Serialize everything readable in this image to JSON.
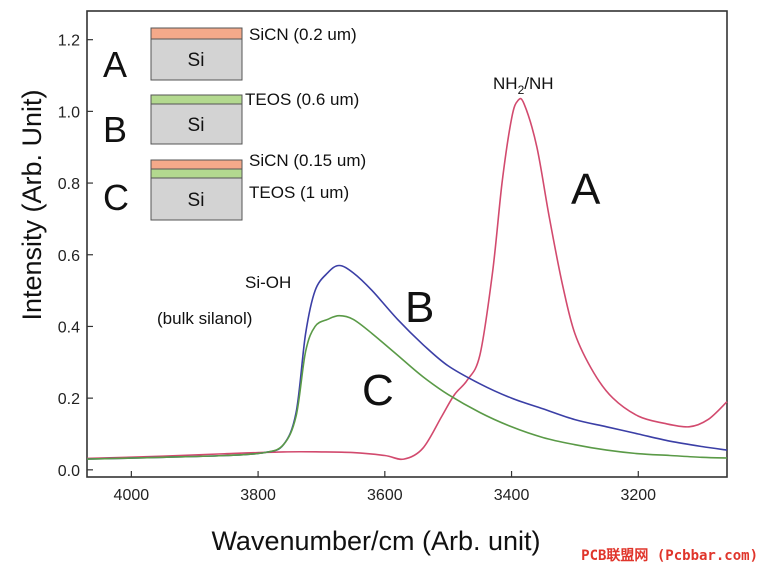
{
  "chart_data": {
    "type": "line",
    "xlabel": "Wavenumber/cm (Arb. unit)",
    "ylabel": "Intensity (Arb. Unit)",
    "xlim": [
      4070,
      3060
    ],
    "ylim": [
      -0.02,
      1.28
    ],
    "x_reversed": true,
    "x_ticks": [
      4000,
      3800,
      3600,
      3400,
      3200
    ],
    "y_ticks": [
      0.0,
      0.2,
      0.4,
      0.6,
      0.8,
      1.0,
      1.2
    ],
    "y_tick_labels": [
      "0.0",
      "0.2",
      "0.4",
      "0.6",
      "0.8",
      "1.0",
      "1.2"
    ],
    "grid": false,
    "series": [
      {
        "name": "A",
        "color": "#d24a6e",
        "points": [
          [
            4070,
            0.032
          ],
          [
            3950,
            0.038
          ],
          [
            3850,
            0.045
          ],
          [
            3760,
            0.05
          ],
          [
            3700,
            0.05
          ],
          [
            3650,
            0.048
          ],
          [
            3600,
            0.04
          ],
          [
            3570,
            0.03
          ],
          [
            3540,
            0.06
          ],
          [
            3510,
            0.15
          ],
          [
            3490,
            0.21
          ],
          [
            3470,
            0.25
          ],
          [
            3450,
            0.32
          ],
          [
            3430,
            0.55
          ],
          [
            3415,
            0.8
          ],
          [
            3400,
            0.98
          ],
          [
            3390,
            1.03
          ],
          [
            3380,
            1.02
          ],
          [
            3360,
            0.9
          ],
          [
            3340,
            0.7
          ],
          [
            3320,
            0.52
          ],
          [
            3300,
            0.38
          ],
          [
            3270,
            0.27
          ],
          [
            3240,
            0.2
          ],
          [
            3200,
            0.15
          ],
          [
            3160,
            0.13
          ],
          [
            3120,
            0.12
          ],
          [
            3090,
            0.14
          ],
          [
            3060,
            0.19
          ]
        ]
      },
      {
        "name": "B",
        "color": "#3b3fa6",
        "points": [
          [
            4070,
            0.03
          ],
          [
            3950,
            0.035
          ],
          [
            3850,
            0.04
          ],
          [
            3790,
            0.048
          ],
          [
            3760,
            0.07
          ],
          [
            3740,
            0.16
          ],
          [
            3725,
            0.38
          ],
          [
            3710,
            0.5
          ],
          [
            3690,
            0.55
          ],
          [
            3672,
            0.57
          ],
          [
            3650,
            0.55
          ],
          [
            3620,
            0.5
          ],
          [
            3580,
            0.42
          ],
          [
            3540,
            0.35
          ],
          [
            3500,
            0.29
          ],
          [
            3450,
            0.24
          ],
          [
            3400,
            0.2
          ],
          [
            3350,
            0.17
          ],
          [
            3300,
            0.14
          ],
          [
            3250,
            0.12
          ],
          [
            3200,
            0.1
          ],
          [
            3150,
            0.08
          ],
          [
            3100,
            0.065
          ],
          [
            3060,
            0.055
          ]
        ]
      },
      {
        "name": "C",
        "color": "#5a9a47",
        "points": [
          [
            4070,
            0.03
          ],
          [
            3950,
            0.035
          ],
          [
            3850,
            0.04
          ],
          [
            3790,
            0.048
          ],
          [
            3760,
            0.07
          ],
          [
            3740,
            0.15
          ],
          [
            3725,
            0.33
          ],
          [
            3710,
            0.4
          ],
          [
            3690,
            0.42
          ],
          [
            3672,
            0.43
          ],
          [
            3650,
            0.42
          ],
          [
            3620,
            0.38
          ],
          [
            3580,
            0.32
          ],
          [
            3540,
            0.26
          ],
          [
            3500,
            0.21
          ],
          [
            3450,
            0.16
          ],
          [
            3400,
            0.12
          ],
          [
            3350,
            0.09
          ],
          [
            3300,
            0.07
          ],
          [
            3250,
            0.055
          ],
          [
            3200,
            0.045
          ],
          [
            3150,
            0.04
          ],
          [
            3100,
            0.035
          ],
          [
            3060,
            0.033
          ]
        ]
      }
    ],
    "annotations": {
      "nh_peak": {
        "pre": "NH",
        "sub": "2",
        "post": "/NH"
      },
      "sioh_line1": "Si-OH",
      "sioh_line2": "(bulk silanol)",
      "curve_label_a": "A",
      "curve_label_b": "B",
      "curve_label_c": "C"
    },
    "inset_legend": [
      {
        "letter": "A",
        "layers": [
          {
            "label": "SiCN (0.2 um)",
            "color": "#f4a98a"
          }
        ],
        "substrate": "Si"
      },
      {
        "letter": "B",
        "layers": [
          {
            "label": "TEOS (0.6 um)",
            "color": "#b3d98f"
          }
        ],
        "substrate": "Si"
      },
      {
        "letter": "C",
        "layers": [
          {
            "label": "SiCN (0.15 um)",
            "color": "#f4a98a"
          },
          {
            "label": "TEOS (1 um)",
            "color": "#b3d98f"
          }
        ],
        "substrate": "Si"
      }
    ],
    "substrate_color": "#d3d3d3"
  },
  "watermark": {
    "text": "PCB联盟网 (Pcbbar.com)",
    "color": "#e0352b"
  }
}
